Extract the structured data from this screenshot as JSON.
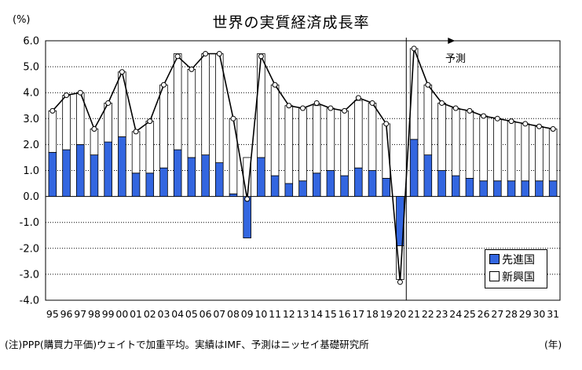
{
  "title": "世界の実質経済成長率",
  "unit_label": "(%)",
  "note": "(注)PPP(購買力平価)ウェイトで加重平均。実績はIMF、予測はニッセイ基礎研究所",
  "year_unit": "(年)",
  "forecast_label": "予測",
  "legend": {
    "advanced": "先進国",
    "emerging": "新興国"
  },
  "colors": {
    "advanced": "#3366e0",
    "emerging": "#ffffff",
    "total_line": "#000000"
  },
  "chart_data": {
    "type": "bar",
    "stacked": true,
    "categories": [
      "95",
      "96",
      "97",
      "98",
      "99",
      "00",
      "01",
      "02",
      "03",
      "04",
      "05",
      "06",
      "07",
      "08",
      "09",
      "10",
      "11",
      "12",
      "13",
      "14",
      "15",
      "16",
      "17",
      "18",
      "19",
      "20",
      "21",
      "22",
      "23",
      "24",
      "25",
      "26",
      "27",
      "28",
      "29",
      "30",
      "31"
    ],
    "series": [
      {
        "name": "先進国",
        "values": [
          1.7,
          1.8,
          2.0,
          1.6,
          2.1,
          2.3,
          0.9,
          0.9,
          1.1,
          1.8,
          1.5,
          1.6,
          1.3,
          0.1,
          -1.6,
          1.5,
          0.8,
          0.5,
          0.6,
          0.9,
          1.0,
          0.8,
          1.1,
          1.0,
          0.7,
          -1.9,
          2.2,
          1.6,
          1.0,
          0.8,
          0.7,
          0.6,
          0.6,
          0.6,
          0.6,
          0.6,
          0.6
        ]
      },
      {
        "name": "新興国",
        "values": [
          1.6,
          2.1,
          2.0,
          1.0,
          1.5,
          2.5,
          1.6,
          2.0,
          3.2,
          3.7,
          3.4,
          3.9,
          4.2,
          2.9,
          1.5,
          4.0,
          3.5,
          3.0,
          2.8,
          2.6,
          2.4,
          2.5,
          2.6,
          2.6,
          2.1,
          -1.3,
          3.5,
          2.7,
          2.6,
          2.6,
          2.6,
          2.5,
          2.4,
          2.3,
          2.2,
          2.1,
          2.0
        ]
      }
    ],
    "total": [
      3.3,
      3.9,
      4.0,
      2.6,
      3.6,
      4.8,
      2.5,
      2.9,
      4.3,
      5.4,
      4.9,
      5.5,
      5.5,
      3.0,
      -0.1,
      5.4,
      4.3,
      3.5,
      3.4,
      3.6,
      3.4,
      3.3,
      3.8,
      3.6,
      2.8,
      -3.3,
      5.7,
      4.3,
      3.6,
      3.4,
      3.3,
      3.1,
      3.0,
      2.9,
      2.8,
      2.7,
      2.6
    ],
    "ylim": [
      -4.0,
      6.0
    ],
    "yticks": [
      "6.0",
      "5.0",
      "4.0",
      "3.0",
      "2.0",
      "1.0",
      "0.0",
      "-1.0",
      "-2.0",
      "-3.0",
      "-4.0"
    ],
    "forecast_from_index": 26,
    "legend_position": "bottom-right",
    "grid": true
  }
}
